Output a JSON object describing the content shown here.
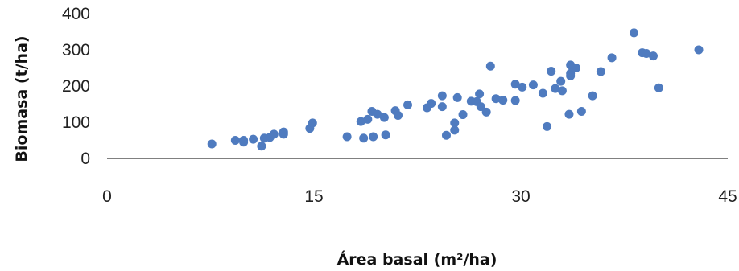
{
  "chart_data": {
    "type": "scatter",
    "title": "",
    "xlabel": "Área basal (m²/ha)",
    "ylabel": "Biomasa (t/ha)",
    "xlim": [
      0,
      45
    ],
    "ylim": [
      0,
      400
    ],
    "x_ticks": [
      "0",
      "15",
      "30",
      "45"
    ],
    "y_ticks": [
      "0",
      "100",
      "200",
      "300",
      "400"
    ],
    "grid": false,
    "legend": "none",
    "marker_color": "#4F7BBF",
    "points": [
      {
        "x": 7.6,
        "y": 40
      },
      {
        "x": 9.3,
        "y": 50
      },
      {
        "x": 9.9,
        "y": 50
      },
      {
        "x": 9.9,
        "y": 45
      },
      {
        "x": 10.6,
        "y": 53
      },
      {
        "x": 11.2,
        "y": 34
      },
      {
        "x": 11.4,
        "y": 56
      },
      {
        "x": 11.8,
        "y": 58
      },
      {
        "x": 12.1,
        "y": 67
      },
      {
        "x": 12.8,
        "y": 73
      },
      {
        "x": 12.8,
        "y": 67
      },
      {
        "x": 14.7,
        "y": 83
      },
      {
        "x": 14.9,
        "y": 98
      },
      {
        "x": 17.4,
        "y": 60
      },
      {
        "x": 18.4,
        "y": 102
      },
      {
        "x": 18.6,
        "y": 56
      },
      {
        "x": 18.9,
        "y": 108
      },
      {
        "x": 19.2,
        "y": 130
      },
      {
        "x": 19.3,
        "y": 60
      },
      {
        "x": 19.6,
        "y": 122
      },
      {
        "x": 20.1,
        "y": 113
      },
      {
        "x": 20.2,
        "y": 65
      },
      {
        "x": 20.9,
        "y": 132
      },
      {
        "x": 21.1,
        "y": 119
      },
      {
        "x": 21.8,
        "y": 148
      },
      {
        "x": 23.2,
        "y": 140
      },
      {
        "x": 23.5,
        "y": 152
      },
      {
        "x": 24.3,
        "y": 173
      },
      {
        "x": 24.3,
        "y": 143
      },
      {
        "x": 24.6,
        "y": 64
      },
      {
        "x": 25.2,
        "y": 78
      },
      {
        "x": 25.2,
        "y": 98
      },
      {
        "x": 25.4,
        "y": 168
      },
      {
        "x": 25.8,
        "y": 121
      },
      {
        "x": 26.4,
        "y": 158
      },
      {
        "x": 26.8,
        "y": 157
      },
      {
        "x": 27.0,
        "y": 178
      },
      {
        "x": 27.1,
        "y": 143
      },
      {
        "x": 27.5,
        "y": 128
      },
      {
        "x": 27.8,
        "y": 255
      },
      {
        "x": 28.2,
        "y": 165
      },
      {
        "x": 28.7,
        "y": 161
      },
      {
        "x": 29.6,
        "y": 160
      },
      {
        "x": 29.6,
        "y": 205
      },
      {
        "x": 30.1,
        "y": 197
      },
      {
        "x": 30.9,
        "y": 203
      },
      {
        "x": 31.6,
        "y": 180
      },
      {
        "x": 31.9,
        "y": 88
      },
      {
        "x": 32.2,
        "y": 241
      },
      {
        "x": 32.5,
        "y": 193
      },
      {
        "x": 32.9,
        "y": 213
      },
      {
        "x": 33.0,
        "y": 187
      },
      {
        "x": 33.5,
        "y": 122
      },
      {
        "x": 33.6,
        "y": 258
      },
      {
        "x": 33.6,
        "y": 235
      },
      {
        "x": 33.6,
        "y": 228
      },
      {
        "x": 34.0,
        "y": 250
      },
      {
        "x": 34.4,
        "y": 130
      },
      {
        "x": 35.2,
        "y": 173
      },
      {
        "x": 35.8,
        "y": 240
      },
      {
        "x": 36.6,
        "y": 278
      },
      {
        "x": 38.2,
        "y": 347
      },
      {
        "x": 38.8,
        "y": 292
      },
      {
        "x": 39.1,
        "y": 290
      },
      {
        "x": 39.6,
        "y": 283
      },
      {
        "x": 40.0,
        "y": 195
      },
      {
        "x": 42.9,
        "y": 300
      }
    ]
  }
}
